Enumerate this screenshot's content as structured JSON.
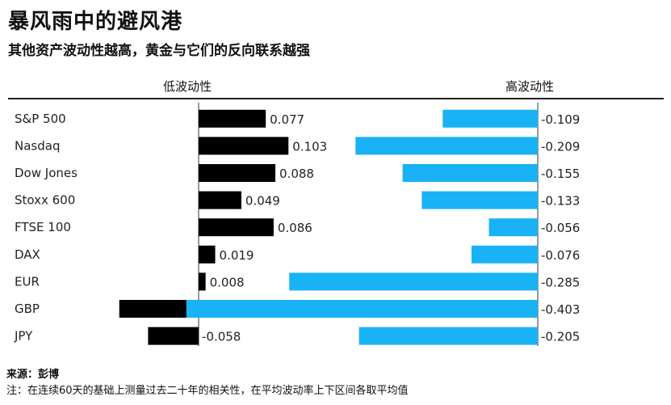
{
  "title": "暴风雨中的避风港",
  "subtitle": "其他资产波动性越高，黄金与它们的反向联系越强",
  "source": "来源：彭博",
  "note": "注：在连续60天的基础上测量过去二十年的相关性，在平均波动率上下区间各取平均值",
  "colors": {
    "low": "#000000",
    "high": "#19b3f5"
  },
  "chart_data": {
    "type": "bar",
    "orientation": "horizontal",
    "categories": [
      "S&P 500",
      "Nasdaq",
      "Dow Jones",
      "Stoxx 600",
      "FTSE 100",
      "DAX",
      "EUR",
      "GBP",
      "JPY"
    ],
    "series": [
      {
        "name": "低波动性",
        "values": [
          0.077,
          0.103,
          0.088,
          0.049,
          0.086,
          0.019,
          0.008,
          -0.091,
          -0.058
        ]
      },
      {
        "name": "高波动性",
        "values": [
          -0.109,
          -0.209,
          -0.155,
          -0.133,
          -0.056,
          -0.076,
          -0.285,
          -0.403,
          -0.205
        ]
      }
    ],
    "labels": [
      [
        "0.077",
        "0.103",
        "0.088",
        "0.049",
        "0.086",
        "0.019",
        "0.008",
        "-0.091",
        "-0.058"
      ],
      [
        "-0.109",
        "-0.209",
        "-0.155",
        "-0.133",
        "-0.056",
        "-0.076",
        "-0.285",
        "-0.403",
        "-0.205"
      ]
    ],
    "grid": false,
    "legend": "none"
  }
}
